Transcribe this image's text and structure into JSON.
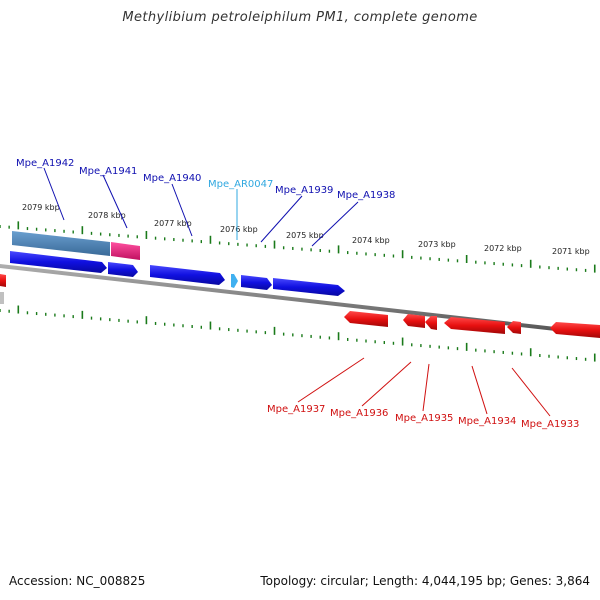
{
  "title": "Methylibium petroleiphilum PM1, complete genome",
  "footer": {
    "accession": "Accession: NC_008825",
    "summary": "Topology: circular; Length: 4,044,195 bp; Genes: 3,864"
  },
  "colors": {
    "forward_gene": "#1010e0",
    "forward_rna": "#40b0f0",
    "reverse_gene": "#e81010",
    "forward_label": "#1010b0",
    "rna_label": "#30a8e0",
    "reverse_label": "#d01010",
    "tick": "#1a7a1a",
    "backbone": "#808080",
    "feature_steelblue": "#4a7fb0",
    "feature_magenta": "#e02880"
  },
  "scale": {
    "unit": "kbp",
    "ticks": [
      "2079 kbp",
      "2078 kbp",
      "2077 kbp",
      "2076 kbp",
      "2075 kbp",
      "2074 kbp",
      "2073 kbp",
      "2072 kbp",
      "2071 kbp"
    ]
  },
  "forward_genes": [
    {
      "name": "Mpe_A1942",
      "type": "CDS"
    },
    {
      "name": "Mpe_A1941",
      "type": "CDS"
    },
    {
      "name": "Mpe_A1940",
      "type": "CDS"
    },
    {
      "name": "Mpe_AR0047",
      "type": "RNA"
    },
    {
      "name": "Mpe_A1939",
      "type": "CDS"
    },
    {
      "name": "Mpe_A1938",
      "type": "CDS"
    }
  ],
  "reverse_genes": [
    {
      "name": "Mpe_A1937",
      "type": "CDS"
    },
    {
      "name": "Mpe_A1936",
      "type": "CDS"
    },
    {
      "name": "Mpe_A1935",
      "type": "CDS"
    },
    {
      "name": "Mpe_A1934",
      "type": "CDS"
    },
    {
      "name": "Mpe_A1933",
      "type": "CDS"
    }
  ]
}
